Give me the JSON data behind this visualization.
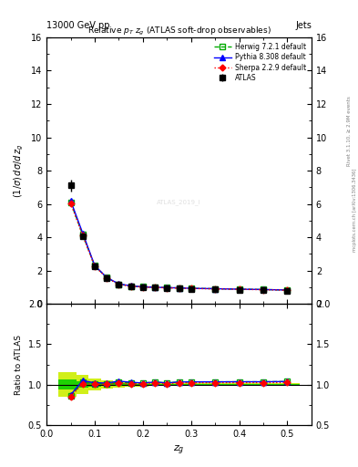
{
  "title_top": "13000 GeV pp",
  "title_right": "Jets",
  "plot_title": "Relative $p_T$ $z_g$ (ATLAS soft-drop observables)",
  "ylabel_main": "(1/σ) dσ/d z_g",
  "ylabel_ratio": "Ratio to ATLAS",
  "xlabel": "z_g",
  "rivet_label": "Rivet 3.1.10, ≥ 2.9M events",
  "mcplots_label": "mcplots.cern.ch [arXiv:1306.3436]",
  "zg_centers": [
    0.05,
    0.075,
    0.1,
    0.125,
    0.15,
    0.175,
    0.2,
    0.225,
    0.25,
    0.275,
    0.3,
    0.35,
    0.4,
    0.45,
    0.5
  ],
  "atlas_y": [
    7.1,
    4.05,
    2.25,
    1.55,
    1.15,
    1.05,
    1.0,
    0.97,
    0.95,
    0.93,
    0.9,
    0.88,
    0.85,
    0.83,
    0.8
  ],
  "atlas_yerr": [
    0.35,
    0.15,
    0.08,
    0.05,
    0.04,
    0.03,
    0.03,
    0.02,
    0.02,
    0.02,
    0.02,
    0.02,
    0.02,
    0.02,
    0.02
  ],
  "herwig_y": [
    6.1,
    4.15,
    2.28,
    1.57,
    1.18,
    1.07,
    1.02,
    1.0,
    0.97,
    0.96,
    0.93,
    0.91,
    0.88,
    0.86,
    0.83
  ],
  "pythia_y": [
    6.2,
    4.25,
    2.3,
    1.58,
    1.2,
    1.08,
    1.02,
    1.0,
    0.97,
    0.96,
    0.93,
    0.91,
    0.88,
    0.86,
    0.83
  ],
  "sherpa_y": [
    6.05,
    4.1,
    2.26,
    1.56,
    1.17,
    1.06,
    1.01,
    0.99,
    0.96,
    0.95,
    0.92,
    0.9,
    0.87,
    0.85,
    0.82
  ],
  "herwig_ratio": [
    0.86,
    1.025,
    1.013,
    1.013,
    1.026,
    1.019,
    1.02,
    1.031,
    1.021,
    1.032,
    1.033,
    1.034,
    1.035,
    1.035,
    1.038
  ],
  "pythia_ratio": [
    0.873,
    1.049,
    1.022,
    1.019,
    1.043,
    1.029,
    1.02,
    1.031,
    1.021,
    1.032,
    1.033,
    1.034,
    1.035,
    1.035,
    1.038
  ],
  "sherpa_ratio": [
    0.852,
    1.012,
    1.004,
    1.006,
    1.017,
    1.01,
    1.01,
    1.021,
    1.011,
    1.022,
    1.022,
    1.023,
    1.024,
    1.024,
    1.025
  ],
  "atlas_ratio_err_inner": [
    0.06,
    0.04,
    0.025,
    0.02,
    0.015,
    0.012,
    0.012,
    0.01,
    0.01,
    0.01,
    0.01,
    0.01,
    0.01,
    0.01,
    0.01
  ],
  "atlas_ratio_err_outer": [
    0.15,
    0.12,
    0.07,
    0.05,
    0.04,
    0.03,
    0.025,
    0.02,
    0.02,
    0.02,
    0.02,
    0.02,
    0.02,
    0.02,
    0.02
  ],
  "color_atlas": "#000000",
  "color_herwig": "#00aa00",
  "color_pythia": "#0000ff",
  "color_sherpa": "#ff0000",
  "color_band_inner": "#00cc00",
  "color_band_outer": "#ccee00",
  "ylim_main": [
    0,
    16
  ],
  "ylim_ratio": [
    0.5,
    2.0
  ],
  "xlim": [
    0.0,
    0.55
  ],
  "legend_labels": [
    "ATLAS",
    "Herwig 7.2.1 default",
    "Pythia 8.308 default",
    "Sherpa 2.2.9 default"
  ]
}
